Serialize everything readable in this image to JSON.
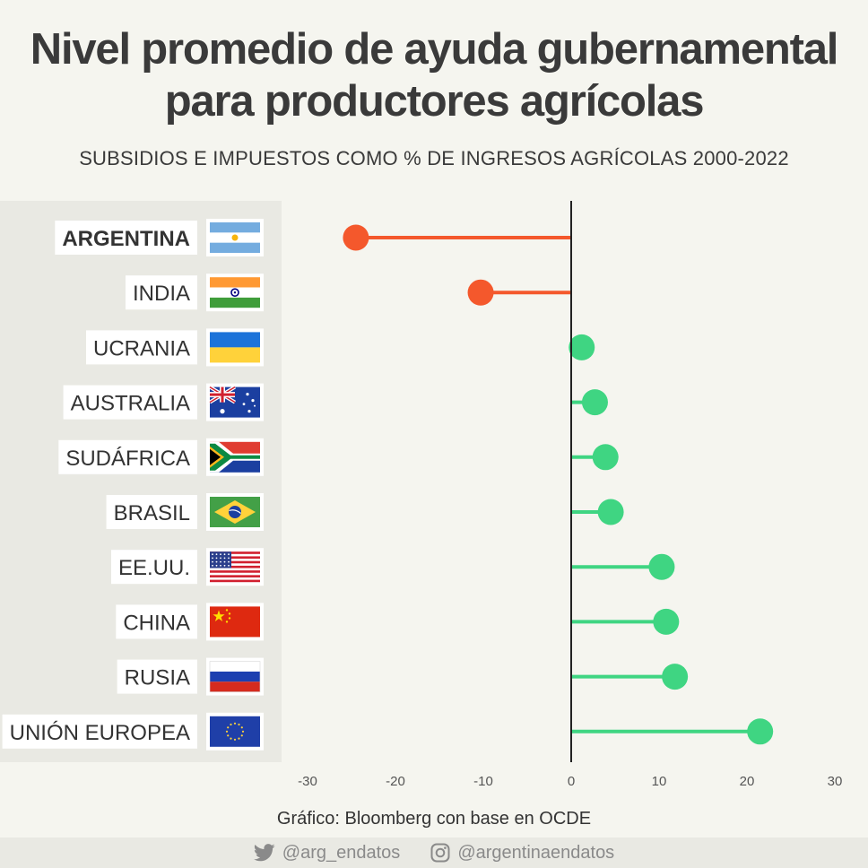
{
  "title_line1": "Nivel promedio de ayuda gubernamental",
  "title_line2": "para productores agrícolas",
  "subtitle": "SUBSIDIOS E IMPUESTOS COMO % DE INGRESOS AGRÍCOLAS 2000-2022",
  "source": "Gráfico: Bloomberg con base en OCDE",
  "footer": {
    "twitter_handle": "@arg_endatos",
    "twitter_icon": "twitter-bird-icon",
    "instagram_handle": "@argentinaendatos",
    "instagram_icon": "instagram-icon"
  },
  "colors": {
    "negative": "#f4582c",
    "positive": "#3fd582",
    "axis": "#222222",
    "background": "#f5f5ef",
    "panel": "#e9e9e3"
  },
  "chart_data": {
    "type": "lollipop",
    "orientation": "horizontal",
    "categories": [
      "ARGENTINA",
      "INDIA",
      "UCRANIA",
      "AUSTRALIA",
      "SUDÁFRICA",
      "BRASIL",
      "EE.UU.",
      "CHINA",
      "RUSIA",
      "UNIÓN EUROPEA"
    ],
    "flag_icons": [
      "argentina-flag-icon",
      "india-flag-icon",
      "ukraine-flag-icon",
      "australia-flag-icon",
      "south-africa-flag-icon",
      "brazil-flag-icon",
      "usa-flag-icon",
      "china-flag-icon",
      "russia-flag-icon",
      "eu-flag-icon"
    ],
    "values": [
      -24.5,
      -10.3,
      1.2,
      2.7,
      3.9,
      4.5,
      10.3,
      10.8,
      11.8,
      21.5
    ],
    "highlighted_category": "ARGENTINA",
    "xlim": [
      -30,
      30
    ],
    "xticks": [
      -30,
      -20,
      -10,
      0,
      10,
      20,
      30
    ],
    "grid": false,
    "legend": "none"
  }
}
